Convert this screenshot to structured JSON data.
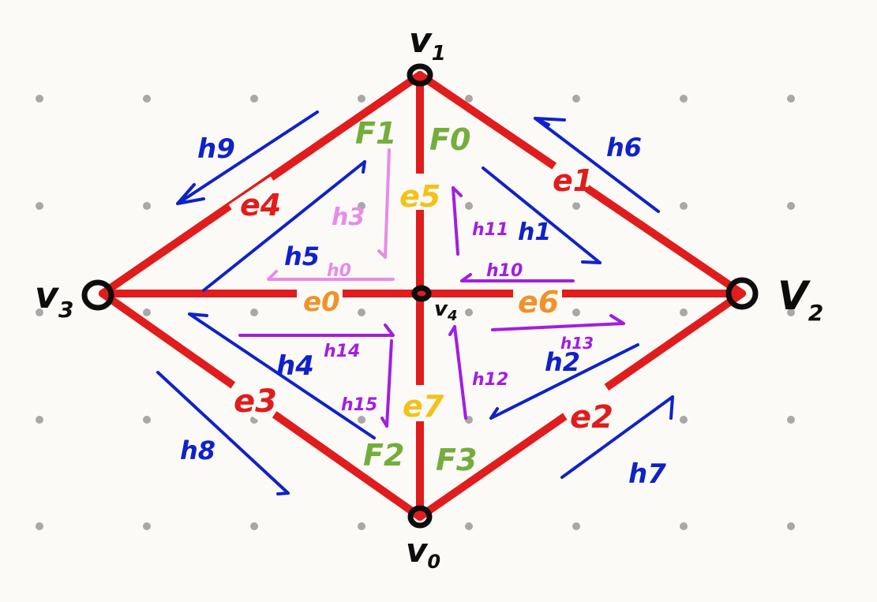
{
  "colors": {
    "background": "#fbfaf6",
    "grid_dot": "#a8a8a8",
    "edge": "#e11c1c",
    "edge_label": "#e11c1c",
    "edge_label_inner": "#f2c21b",
    "edge_label_horizontal": "#f0922a",
    "vertex": "#0d0d0d",
    "half_edge_outer": "#0f22c8",
    "half_edge_inner_light": "#e88be8",
    "half_edge_inner_purple": "#a21ee0",
    "face": "#74ad3c"
  },
  "vertices": [
    {
      "label": "v1",
      "text": "v"
    },
    {
      "label": "v2",
      "text": "V"
    },
    {
      "label": "v3",
      "text": "v"
    },
    {
      "label": "v4",
      "text": "v"
    },
    {
      "label": "v0",
      "text": "v"
    }
  ],
  "vertex_subscripts": {
    "v1": "1",
    "v2": "2",
    "v3": "3",
    "v4": "4",
    "v0": "0"
  },
  "edges": [
    "e0",
    "e1",
    "e2",
    "e3",
    "e4",
    "e5",
    "e6",
    "e7"
  ],
  "edge_labels": {
    "e4": "e4",
    "e1": "e1",
    "e5": "e5",
    "e0": "e0",
    "e6": "e6",
    "e3": "e3",
    "e7": "e7",
    "e2": "e2"
  },
  "half_edge_labels": {
    "h9": "h9",
    "h6": "h6",
    "h3": "h3",
    "h5": "h5",
    "h0": "h0",
    "h11": "h11",
    "h1": "h1",
    "h10": "h10",
    "h4": "h4",
    "h14": "h14",
    "h15": "h15",
    "h12": "h12",
    "h2": "h2",
    "h13": "h13",
    "h8": "h8",
    "h7": "h7"
  },
  "face_labels": {
    "F1": "F1",
    "F0": "F0",
    "F2": "F2",
    "F3": "F3"
  }
}
